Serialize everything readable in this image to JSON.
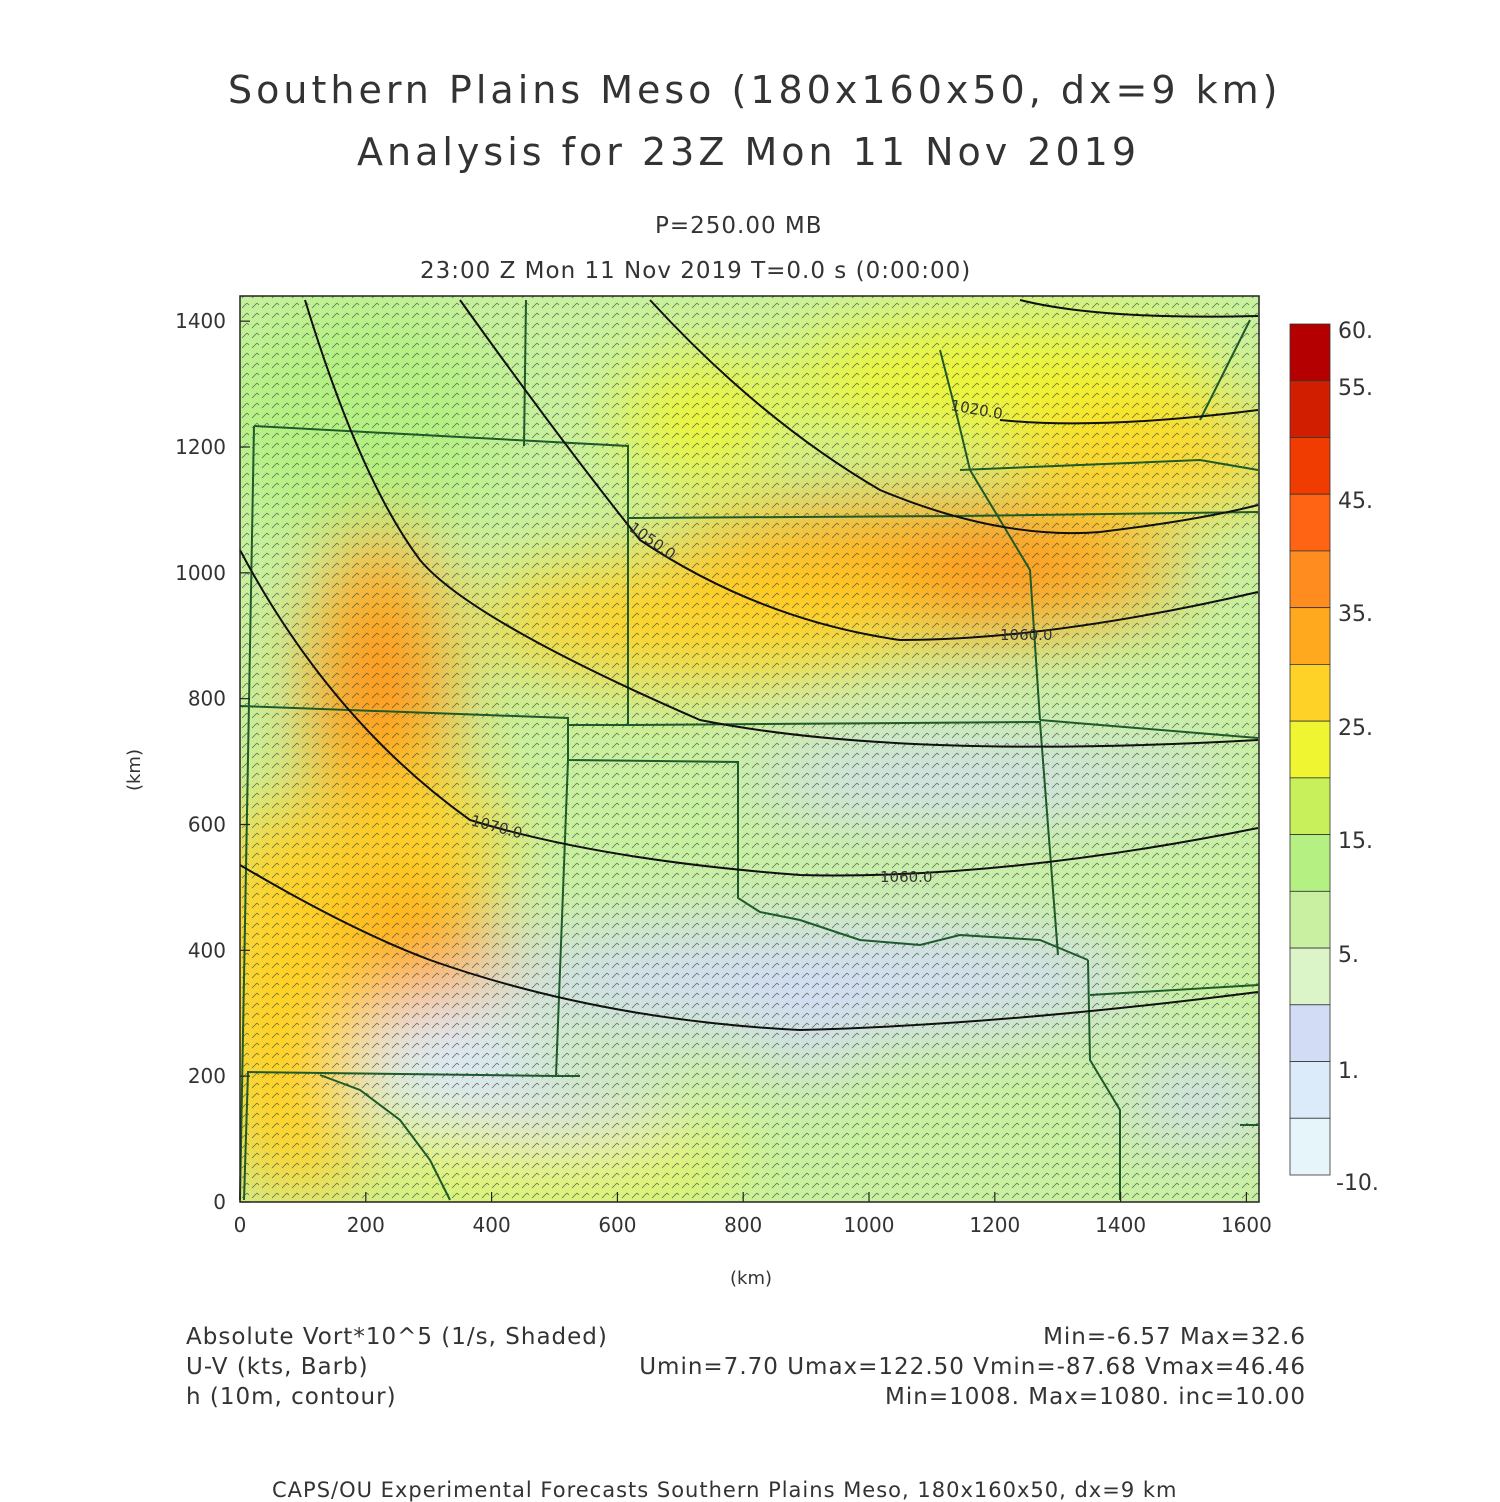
{
  "header": {
    "title_line1": "Southern Plains Meso (180x160x50, dx=9 km)",
    "title_line2": "Analysis for 23Z Mon 11 Nov 2019",
    "level": "P=250.00 MB",
    "time": "23:00 Z Mon 11 Nov 2019    T=0.0 s (0:00:00)"
  },
  "axes": {
    "x_label": "(km)",
    "y_label": "(km)",
    "x_ticks": [
      "0",
      "200",
      "400",
      "600",
      "800",
      "1000",
      "1200",
      "1400",
      "1600"
    ],
    "y_ticks": [
      "0",
      "200",
      "400",
      "600",
      "800",
      "1000",
      "1200",
      "1400"
    ],
    "x_range": [
      0,
      1620
    ],
    "y_range": [
      0,
      1440
    ]
  },
  "colorbar": {
    "labels": [
      "60.",
      "55.",
      "45.",
      "35.",
      "25.",
      "15.",
      "5.",
      "1.",
      "-10."
    ],
    "colors": [
      "#b40000",
      "#d21e00",
      "#f03c00",
      "#ff6414",
      "#ff8c1e",
      "#ffaa1e",
      "#ffd228",
      "#f0f532",
      "#c8f05a",
      "#b4f082",
      "#c8f0a0",
      "#dcf5c8",
      "#d2dcf5",
      "#dcebfa",
      "#e6f5fa"
    ]
  },
  "contour_labels": [
    "1020.0",
    "1050.0",
    "1060.0",
    "1070.0",
    "1060.0"
  ],
  "footer": {
    "field1_name": "Absolute Vort*10^5 (1/s, Shaded)",
    "field1_stats": "Min=-6.57 Max=32.6",
    "field2_name": "U-V (kts, Barb)",
    "field2_stats": "Umin=7.70 Umax=122.50 Vmin=-87.68 Vmax=46.46",
    "field3_name": "h (10m, contour)",
    "field3_stats": "Min=1008. Max=1080. inc=10.00",
    "credit": "CAPS/OU Experimental Forecasts  Southern Plains Meso, 180x160x50, dx=9 km"
  }
}
